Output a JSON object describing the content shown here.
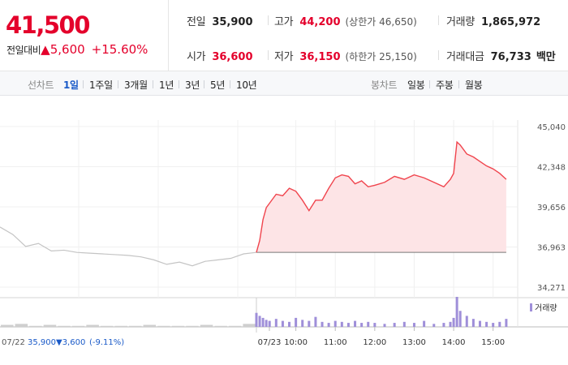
{
  "quote": {
    "price": "41,500",
    "change_label": "전일대비",
    "change_value": "▲5,600",
    "change_percent": "+15.60%",
    "prev_close": {
      "label": "전일",
      "value": "35,900"
    },
    "open": {
      "label": "시가",
      "value": "36,600"
    },
    "high": {
      "label": "고가",
      "value": "44,200",
      "limit_label": "(상한가 46,650)"
    },
    "low": {
      "label": "저가",
      "value": "36,150",
      "limit_label": "(하한가 25,150)"
    },
    "volume": {
      "label": "거래량",
      "value": "1,865,972"
    },
    "trade_value": {
      "label": "거래대금",
      "value": "76,733",
      "unit": "백만"
    },
    "up_color": "#e4002b"
  },
  "tabs": {
    "line_label": "선차트",
    "line_tabs": [
      {
        "label": "1일",
        "active": true
      },
      {
        "label": "1주일",
        "active": false
      },
      {
        "label": "3개월",
        "active": false
      },
      {
        "label": "1년",
        "active": false
      },
      {
        "label": "3년",
        "active": false
      },
      {
        "label": "5년",
        "active": false
      },
      {
        "label": "10년",
        "active": false
      }
    ],
    "candle_label": "봉차트",
    "candle_tabs": [
      {
        "label": "일봉"
      },
      {
        "label": "주봉"
      },
      {
        "label": "월봉"
      }
    ]
  },
  "chart_data": {
    "type": "line",
    "y_ticks": [
      "45,040",
      "42,348",
      "39,656",
      "36,963",
      "34,271"
    ],
    "ylim": [
      34271,
      45040
    ],
    "x_tick_labels": [
      "07/22",
      "07/23",
      "10:00",
      "11:00",
      "12:00",
      "13:00",
      "14:00",
      "15:00"
    ],
    "prev_day_footer": {
      "date": "07/22",
      "close": "35,900",
      "change": "▼3,600",
      "change_percent": "(-9.11%)"
    },
    "volume_legend": "거래량",
    "base_price": 36600,
    "colors": {
      "today_line": "#f0444d",
      "today_fill": "#fde4e6",
      "prev_line": "#c4c4c4",
      "volume_today": "#9f8fd9",
      "volume_prev": "#cfcfcf"
    },
    "series": [
      {
        "day": "07/22",
        "x": [
          0,
          0.05,
          0.1,
          0.15,
          0.2,
          0.25,
          0.3,
          0.35,
          0.4,
          0.45,
          0.5,
          0.55,
          0.6,
          0.65,
          0.7,
          0.75,
          0.8,
          0.85,
          0.9,
          0.95,
          1.0
        ],
        "values": [
          38300,
          37800,
          37000,
          37200,
          36700,
          36750,
          36600,
          36550,
          36500,
          36450,
          36400,
          36300,
          36100,
          35800,
          35950,
          35700,
          36000,
          36100,
          36200,
          36500,
          36600
        ]
      },
      {
        "day": "07/23",
        "x": [
          "09:00",
          "09:05",
          "09:10",
          "09:15",
          "09:20",
          "09:30",
          "09:40",
          "09:50",
          "10:00",
          "10:10",
          "10:20",
          "10:30",
          "10:40",
          "10:50",
          "11:00",
          "11:10",
          "11:20",
          "11:30",
          "11:40",
          "11:50",
          "12:00",
          "12:15",
          "12:30",
          "12:45",
          "13:00",
          "13:15",
          "13:30",
          "13:45",
          "13:55",
          "14:00",
          "14:05",
          "14:10",
          "14:20",
          "14:30",
          "14:40",
          "14:50",
          "15:00",
          "15:10",
          "15:20"
        ],
        "values": [
          36600,
          37400,
          38800,
          39600,
          39900,
          40500,
          40400,
          40900,
          40700,
          40100,
          39400,
          40100,
          40100,
          40900,
          41600,
          41800,
          41700,
          41200,
          41400,
          41000,
          41100,
          41300,
          41700,
          41500,
          41800,
          41600,
          41300,
          41000,
          41500,
          41900,
          44000,
          43800,
          43200,
          43000,
          42700,
          42400,
          42200,
          41900,
          41500
        ]
      }
    ],
    "volume": {
      "prev": [
        2,
        3,
        1,
        2,
        1,
        1,
        2,
        1,
        1,
        1,
        2,
        1,
        1,
        1,
        2,
        1,
        1,
        3
      ],
      "today": [
        14,
        11,
        9,
        7,
        6,
        8,
        6,
        5,
        9,
        7,
        6,
        10,
        5,
        4,
        6,
        5,
        4,
        6,
        4,
        5,
        4,
        3,
        4,
        5,
        4,
        6,
        3,
        4,
        5,
        9,
        30,
        16,
        11,
        8,
        6,
        5,
        4,
        5,
        8
      ]
    }
  }
}
